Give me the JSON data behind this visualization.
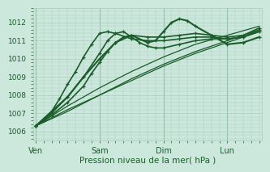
{
  "title": "Pression niveau de la mer( hPa )",
  "bg_color": "#cce8dc",
  "grid_color": "#aaccbb",
  "line_color": "#1a5c2a",
  "x_ticks": [
    0,
    48,
    96,
    144
  ],
  "x_tick_labels": [
    "Ven",
    "Sam",
    "Dim",
    "Lun"
  ],
  "ylim": [
    1005.5,
    1012.8
  ],
  "y_ticks": [
    1006,
    1007,
    1008,
    1009,
    1010,
    1011,
    1012
  ],
  "xlim": [
    -2,
    170
  ],
  "series": [
    {
      "comment": "straight rising line - barely curved, ends ~1011.6 at Lun",
      "x": [
        0,
        24,
        48,
        72,
        96,
        120,
        144,
        168
      ],
      "y": [
        1006.3,
        1007.2,
        1008.0,
        1008.9,
        1009.7,
        1010.4,
        1011.0,
        1011.6
      ],
      "marker": false,
      "lw": 0.9
    },
    {
      "comment": "line rising steeply to Sam peak ~1011.5 then dipping to ~1010.5 then back up",
      "x": [
        0,
        12,
        24,
        36,
        48,
        54,
        60,
        66,
        72,
        78,
        84,
        90,
        96,
        108,
        120,
        132,
        144,
        156,
        168
      ],
      "y": [
        1006.3,
        1007.0,
        1007.9,
        1009.0,
        1010.3,
        1011.0,
        1011.4,
        1011.5,
        1011.2,
        1010.9,
        1010.7,
        1010.6,
        1010.6,
        1010.8,
        1011.0,
        1011.1,
        1011.1,
        1011.2,
        1011.6
      ],
      "marker": true,
      "lw": 1.2
    },
    {
      "comment": "line going to Sam peak ~1011.5, dipping then rising to 1012.2 at Dim, then down",
      "x": [
        0,
        12,
        24,
        36,
        48,
        60,
        72,
        84,
        90,
        96,
        102,
        108,
        114,
        120,
        132,
        144,
        156,
        168
      ],
      "y": [
        1006.3,
        1007.1,
        1007.9,
        1009.0,
        1010.0,
        1010.9,
        1011.3,
        1010.9,
        1011.0,
        1011.5,
        1012.0,
        1012.2,
        1012.1,
        1011.8,
        1011.3,
        1010.8,
        1010.9,
        1011.2
      ],
      "marker": true,
      "lw": 1.5
    },
    {
      "comment": "gradual rise all the way, ends ~1011.8 at Lun",
      "x": [
        0,
        24,
        48,
        72,
        96,
        120,
        144,
        168
      ],
      "y": [
        1006.3,
        1007.4,
        1008.4,
        1009.3,
        1010.1,
        1010.8,
        1011.3,
        1011.8
      ],
      "marker": false,
      "lw": 0.9
    },
    {
      "comment": "gradual rise, ends ~1011.5",
      "x": [
        0,
        24,
        48,
        72,
        96,
        120,
        144,
        168
      ],
      "y": [
        1006.3,
        1007.1,
        1008.0,
        1008.8,
        1009.6,
        1010.3,
        1010.9,
        1011.5
      ],
      "marker": false,
      "lw": 0.9
    },
    {
      "comment": "rises steeply to Sam ~1011.3 then plateau then gradual",
      "x": [
        0,
        12,
        24,
        36,
        42,
        48,
        54,
        60,
        66,
        72,
        84,
        96,
        108,
        120,
        132,
        144,
        156,
        168
      ],
      "y": [
        1006.3,
        1006.9,
        1007.6,
        1008.5,
        1009.2,
        1009.8,
        1010.4,
        1010.9,
        1011.2,
        1011.3,
        1011.2,
        1011.2,
        1011.3,
        1011.4,
        1011.3,
        1011.2,
        1011.3,
        1011.7
      ],
      "marker": true,
      "lw": 1.2
    },
    {
      "comment": "very steep early rise to Sam ~1011.5 then slight dip",
      "x": [
        0,
        6,
        12,
        18,
        24,
        30,
        36,
        42,
        48,
        54,
        60,
        72,
        84,
        96,
        108,
        120,
        132,
        144,
        156,
        168
      ],
      "y": [
        1006.3,
        1006.6,
        1007.1,
        1007.8,
        1008.6,
        1009.3,
        1010.1,
        1010.8,
        1011.4,
        1011.5,
        1011.4,
        1011.1,
        1011.0,
        1011.0,
        1011.1,
        1011.2,
        1011.2,
        1011.1,
        1011.2,
        1011.5
      ],
      "marker": true,
      "lw": 1.2
    }
  ]
}
